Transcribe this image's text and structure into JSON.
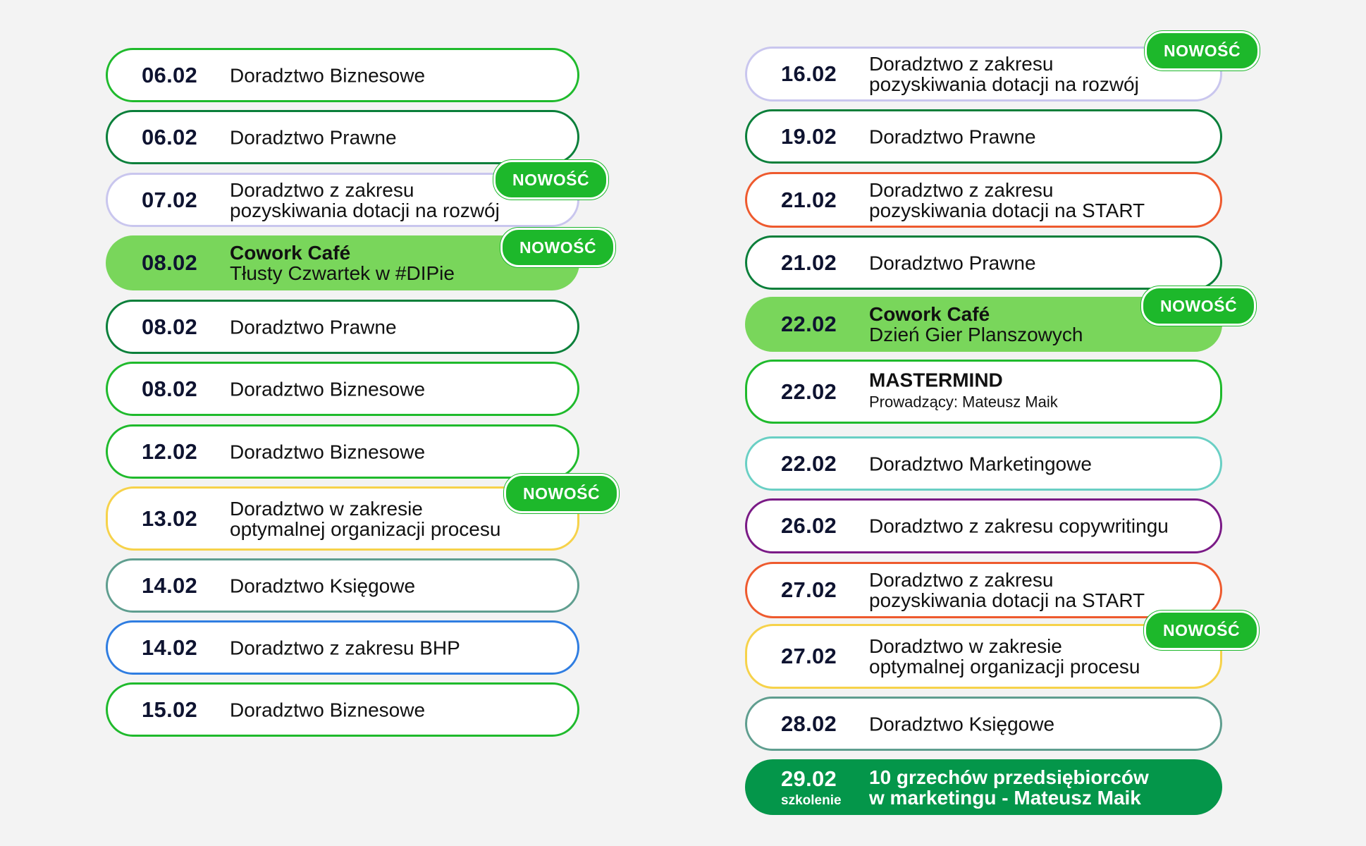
{
  "badge_label": "NOWOŚĆ",
  "colors": {
    "green": "#1fba2c",
    "dark_green": "#0a7f3a",
    "lavender": "#c9c6ee",
    "yellow": "#f6d24a",
    "teal": "#5f9e8f",
    "blue": "#2f7de1",
    "orange": "#ee5a2e",
    "aqua": "#69cfc4",
    "purple": "#7a1a86",
    "fill_green": "#79d65b",
    "fill_dark_green": "#04964a"
  },
  "left": [
    {
      "date": "06.02",
      "line1": "Doradztwo Biznesowe",
      "line2": ""
    },
    {
      "date": "06.02",
      "line1": "Doradztwo Prawne",
      "line2": ""
    },
    {
      "date": "07.02",
      "line1": "Doradztwo z zakresu",
      "line2": "pozyskiwania dotacji na rozwój",
      "badge": true
    },
    {
      "date": "08.02",
      "line1": "Cowork Café",
      "line2": "Tłusty Czwartek w #DIPie",
      "badge": true
    },
    {
      "date": "08.02",
      "line1": "Doradztwo Prawne",
      "line2": ""
    },
    {
      "date": "08.02",
      "line1": "Doradztwo Biznesowe",
      "line2": ""
    },
    {
      "date": "12.02",
      "line1": "Doradztwo Biznesowe",
      "line2": ""
    },
    {
      "date": "13.02",
      "line1": "Doradztwo w zakresie",
      "line2": "optymalnej organizacji procesu",
      "badge": true
    },
    {
      "date": "14.02",
      "line1": "Doradztwo Księgowe",
      "line2": ""
    },
    {
      "date": "14.02",
      "line1": "Doradztwo z zakresu BHP",
      "line2": ""
    },
    {
      "date": "15.02",
      "line1": "Doradztwo Biznesowe",
      "line2": ""
    }
  ],
  "right": [
    {
      "date": "16.02",
      "line1": "Doradztwo z zakresu",
      "line2": "pozyskiwania dotacji na rozwój",
      "badge": true
    },
    {
      "date": "19.02",
      "line1": "Doradztwo Prawne",
      "line2": ""
    },
    {
      "date": "21.02",
      "line1": "Doradztwo z zakresu",
      "line2": "pozyskiwania dotacji na START"
    },
    {
      "date": "21.02",
      "line1": "Doradztwo Prawne",
      "line2": ""
    },
    {
      "date": "22.02",
      "line1": "Cowork Café",
      "line2": "Dzień Gier Planszowych",
      "badge": true
    },
    {
      "date": "22.02",
      "line1": "MASTERMIND",
      "line2": "Prowadzący: Mateusz Maik"
    },
    {
      "date": "22.02",
      "line1": "Doradztwo Marketingowe",
      "line2": ""
    },
    {
      "date": "26.02",
      "line1": "Doradztwo z zakresu copywritingu",
      "line2": ""
    },
    {
      "date": "27.02",
      "line1": "Doradztwo z zakresu",
      "line2": "pozyskiwania dotacji na START"
    },
    {
      "date": "27.02",
      "line1": "Doradztwo w zakresie",
      "line2": "optymalnej organizacji procesu",
      "badge": true
    },
    {
      "date": "28.02",
      "line1": "Doradztwo Księgowe",
      "line2": ""
    },
    {
      "date": "29.02",
      "date_sub": "szkolenie",
      "line1": "10 grzechów przedsiębiorców",
      "line2": "w marketingu - Mateusz Maik"
    }
  ]
}
